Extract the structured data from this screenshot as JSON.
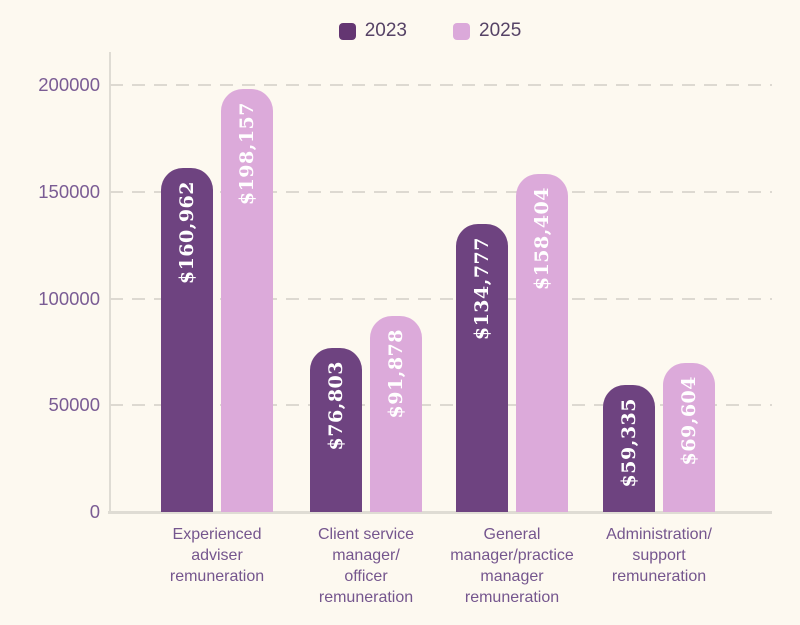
{
  "chart_data": {
    "type": "bar",
    "title": "",
    "xlabel": "",
    "ylabel": "",
    "ylim": [
      0,
      200000
    ],
    "grid": "horizontal-dashed",
    "legend_position": "top-center",
    "background_color": "#FDF9F0",
    "categories": [
      "Experienced\nadviser\nremuneration",
      "Client service\nmanager/\nofficer\nremuneration",
      "General\nmanager/practice\nmanager\nremuneration",
      "Administration/\nsupport\nremuneration"
    ],
    "yticks": [
      {
        "value": 200000,
        "label": "200000"
      },
      {
        "value": 150000,
        "label": "150000"
      },
      {
        "value": 100000,
        "label": "100000"
      },
      {
        "value": 50000,
        "label": "50000"
      },
      {
        "value": 0,
        "label": "0"
      }
    ],
    "series": [
      {
        "name": "2023",
        "color": "#6E4380",
        "legend_color": "#643672",
        "values": [
          160962,
          76803,
          134777,
          59335
        ],
        "labels": [
          "$160,962",
          "$76,803",
          "$134,777",
          "$59,335"
        ]
      },
      {
        "name": "2025",
        "color": "#DCAADA",
        "legend_color": "#DBA9DA",
        "values": [
          198157,
          91878,
          158404,
          69604
        ],
        "labels": [
          "$198,157",
          "$91,878",
          "$158,404",
          "$69,604"
        ]
      }
    ],
    "colors": {
      "axis_line": "#DFDCD4",
      "gridline": "#DDD9D1",
      "ytick_text": "#7A5C94",
      "xtick_text": "#75568E",
      "legend_text": "#564366",
      "bar_value_text": "#FFFFFF"
    }
  }
}
